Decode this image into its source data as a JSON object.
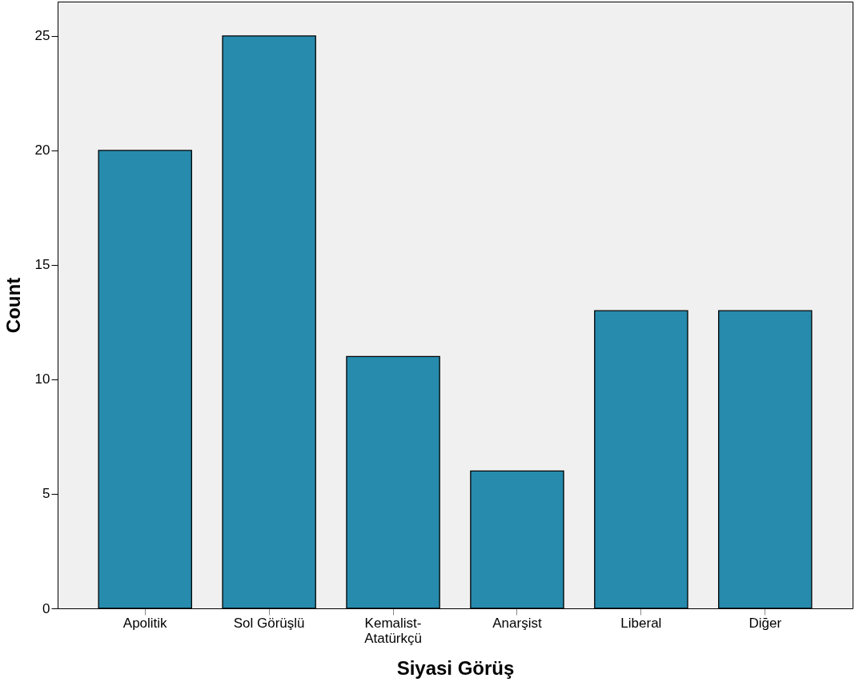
{
  "chart_data": {
    "type": "bar",
    "xlabel": "Siyasi Görüş",
    "ylabel": "Count",
    "categories": [
      "Apolitik",
      "Sol Görüşlü",
      "Kemalist-Atatürkçü",
      "Anarşist",
      "Liberal",
      "Diğer"
    ],
    "values": [
      20,
      25,
      11,
      6,
      13,
      13
    ],
    "color": "#268bad",
    "ylim": [
      0,
      26.5
    ],
    "yticks": [
      0,
      5,
      10,
      15,
      20,
      25
    ],
    "grid": false
  }
}
